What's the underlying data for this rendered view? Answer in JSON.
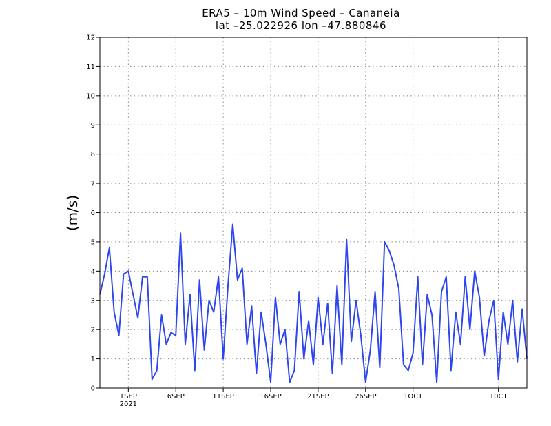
{
  "chart_data": {
    "type": "line",
    "title": "ERA5 – 10m Wind Speed – Cananeia",
    "subtitle": "lat –25.022926 lon –47.880846",
    "xlabel": "",
    "ylabel": "(m/s)",
    "ylim": [
      0,
      12
    ],
    "yticks": [
      0,
      1,
      2,
      3,
      4,
      5,
      6,
      7,
      8,
      9,
      10,
      11,
      12
    ],
    "xlim": [
      "2021-08-29",
      "2021-10-13"
    ],
    "xticks": [
      {
        "date": "2021-09-01",
        "label": "1SEP",
        "sublabel": "2021"
      },
      {
        "date": "2021-09-06",
        "label": "6SEP",
        "sublabel": ""
      },
      {
        "date": "2021-09-11",
        "label": "11SEP",
        "sublabel": ""
      },
      {
        "date": "2021-09-16",
        "label": "16SEP",
        "sublabel": ""
      },
      {
        "date": "2021-09-21",
        "label": "21SEP",
        "sublabel": ""
      },
      {
        "date": "2021-09-26",
        "label": "26SEP",
        "sublabel": ""
      },
      {
        "date": "2021-10-01",
        "label": "1OCT",
        "sublabel": ""
      },
      {
        "date": "2021-10-10",
        "label": "10CT",
        "sublabel": ""
      }
    ],
    "grid": true,
    "series_color": "#2d46f0",
    "series": [
      {
        "x": [
          "2021-08-29",
          "2021-08-29T12",
          "2021-08-30",
          "2021-08-30T12",
          "2021-08-31",
          "2021-08-31T12",
          "2021-09-01",
          "2021-09-01T12",
          "2021-09-02",
          "2021-09-02T12",
          "2021-09-03",
          "2021-09-03T12",
          "2021-09-04",
          "2021-09-04T12",
          "2021-09-05",
          "2021-09-05T12",
          "2021-09-06",
          "2021-09-06T12",
          "2021-09-07",
          "2021-09-07T12",
          "2021-09-08",
          "2021-09-08T12",
          "2021-09-09",
          "2021-09-09T12",
          "2021-09-10",
          "2021-09-10T12",
          "2021-09-11",
          "2021-09-11T12",
          "2021-09-12",
          "2021-09-12T12",
          "2021-09-13",
          "2021-09-13T12",
          "2021-09-14",
          "2021-09-14T12",
          "2021-09-15",
          "2021-09-15T12",
          "2021-09-16",
          "2021-09-16T12",
          "2021-09-17",
          "2021-09-17T12",
          "2021-09-18",
          "2021-09-18T12",
          "2021-09-19",
          "2021-09-19T12",
          "2021-09-20",
          "2021-09-20T12",
          "2021-09-21",
          "2021-09-21T12",
          "2021-09-22",
          "2021-09-22T12",
          "2021-09-23",
          "2021-09-23T12",
          "2021-09-24",
          "2021-09-24T12",
          "2021-09-25",
          "2021-09-25T12",
          "2021-09-26",
          "2021-09-26T12",
          "2021-09-27",
          "2021-09-27T12",
          "2021-09-28",
          "2021-09-28T12",
          "2021-09-29",
          "2021-09-29T12",
          "2021-09-30",
          "2021-09-30T12",
          "2021-10-01",
          "2021-10-01T12",
          "2021-10-02",
          "2021-10-02T12",
          "2021-10-03",
          "2021-10-03T12",
          "2021-10-04",
          "2021-10-04T12",
          "2021-10-05",
          "2021-10-05T12",
          "2021-10-06",
          "2021-10-06T12",
          "2021-10-07",
          "2021-10-07T12",
          "2021-10-08",
          "2021-10-08T12",
          "2021-10-09",
          "2021-10-09T12",
          "2021-10-10",
          "2021-10-10T12",
          "2021-10-11",
          "2021-10-11T12",
          "2021-10-12",
          "2021-10-12T12",
          "2021-10-13"
        ],
        "values": [
          3.2,
          3.9,
          4.8,
          2.6,
          1.8,
          3.9,
          4.0,
          3.2,
          2.4,
          3.8,
          3.8,
          0.3,
          0.6,
          2.5,
          1.5,
          1.9,
          1.8,
          5.3,
          1.5,
          3.2,
          0.6,
          3.7,
          1.3,
          3.0,
          2.6,
          3.8,
          1.0,
          3.5,
          5.6,
          3.7,
          4.1,
          1.5,
          2.8,
          0.5,
          2.6,
          1.5,
          0.2,
          3.1,
          1.5,
          2.0,
          0.2,
          0.6,
          3.3,
          1.0,
          2.3,
          0.8,
          3.1,
          1.5,
          2.9,
          0.5,
          3.5,
          0.8,
          5.1,
          1.6,
          3.0,
          1.8,
          0.2,
          1.3,
          3.3,
          0.7,
          5.0,
          4.7,
          4.2,
          3.4,
          0.8,
          0.6,
          1.2,
          3.8,
          0.8,
          3.2,
          2.5,
          0.2,
          3.3,
          3.8,
          0.6,
          2.6,
          1.5,
          3.8,
          2.0,
          4.0,
          3.1,
          1.1,
          2.3,
          3.0,
          0.3,
          2.6,
          1.5,
          3.0,
          0.9,
          2.7,
          1.0
        ]
      }
    ]
  }
}
